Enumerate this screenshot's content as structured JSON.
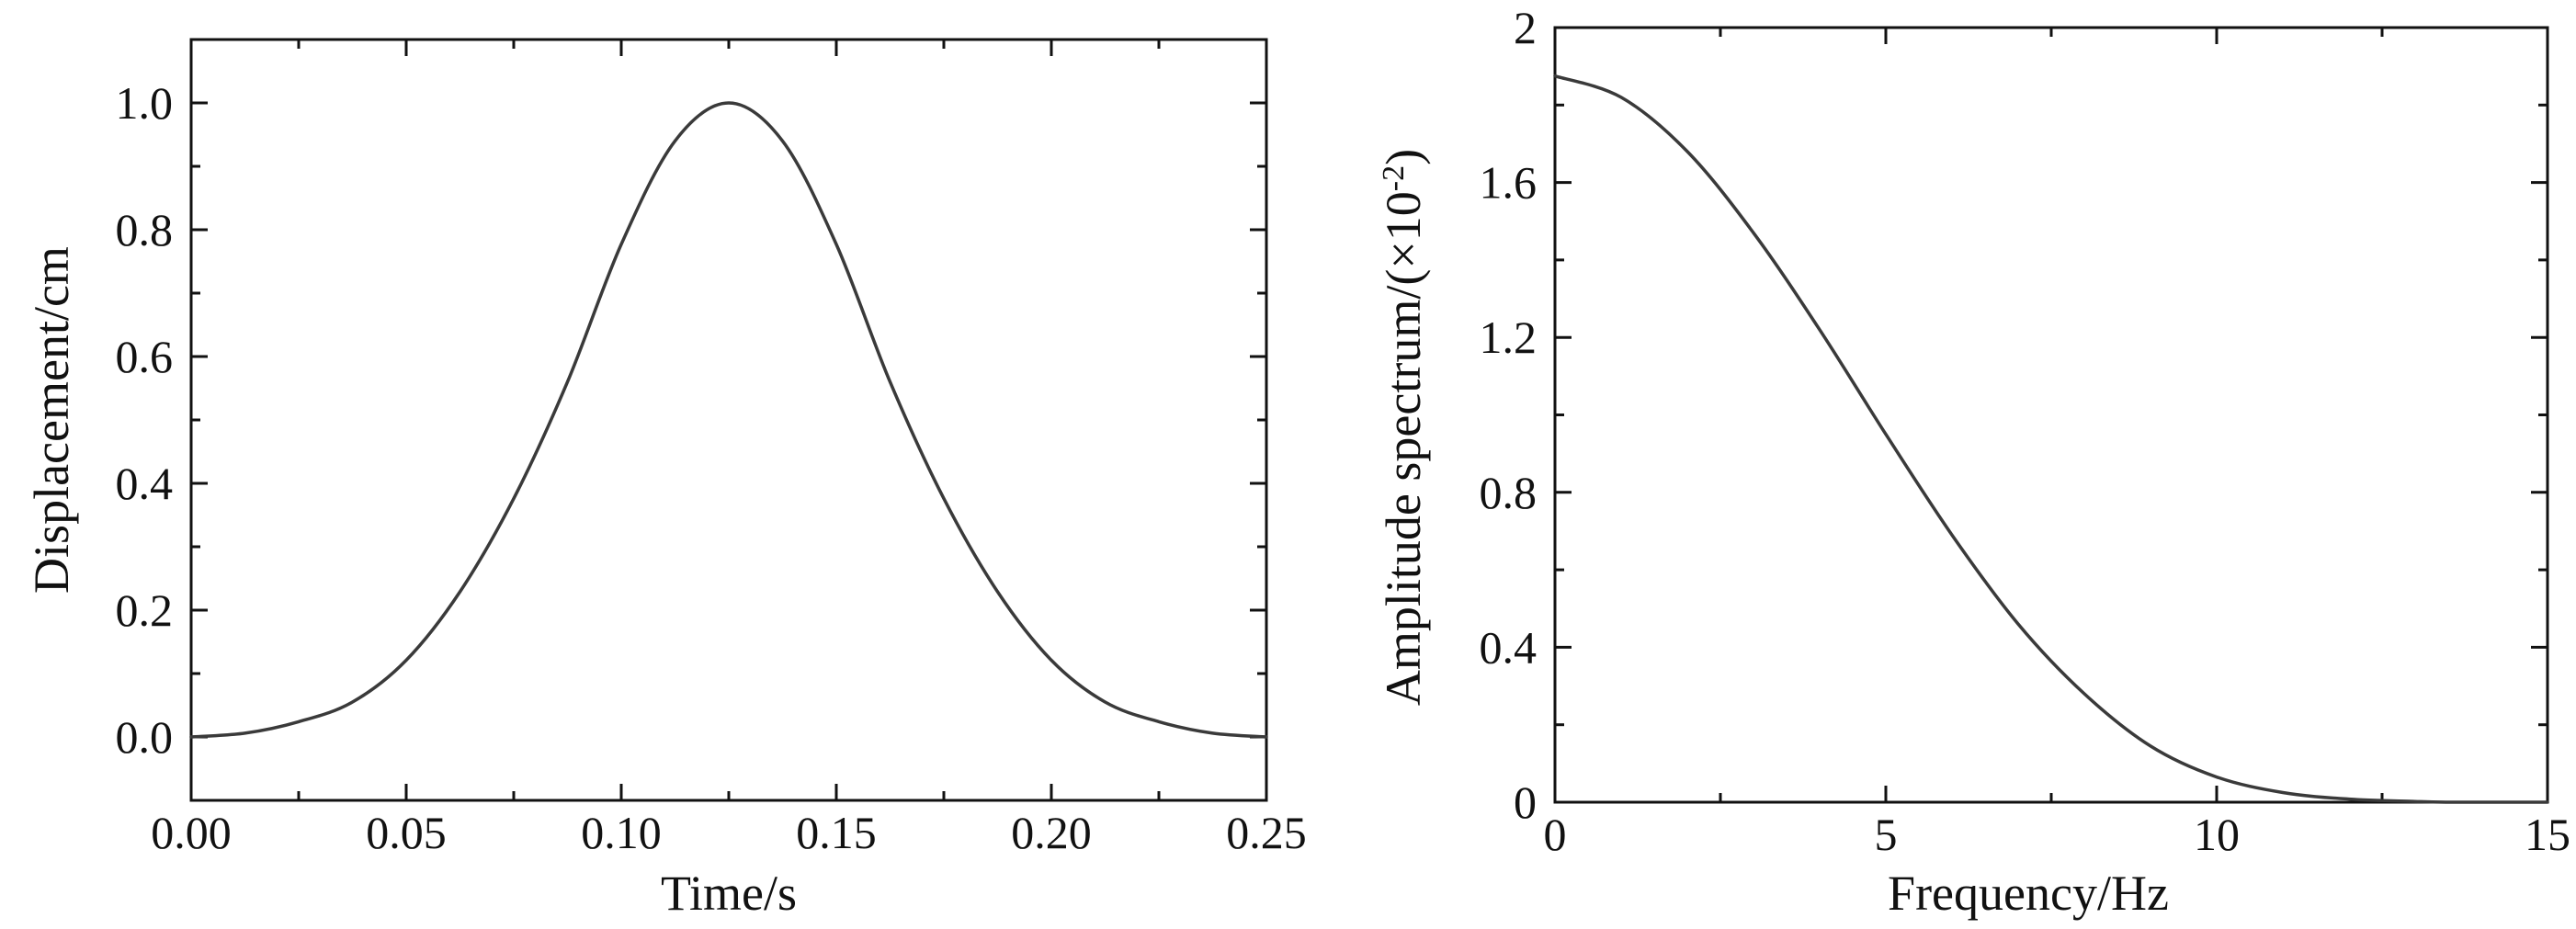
{
  "chart_data": [
    {
      "type": "line",
      "xlabel": "Time/s",
      "ylabel": "Displacement/cm",
      "xlim": [
        0,
        0.25
      ],
      "ylim": [
        -0.1,
        1.1
      ],
      "xticks": [
        0.0,
        0.05,
        0.1,
        0.15,
        0.2,
        0.25
      ],
      "xtick_labels": [
        "0.00",
        "0.05",
        "0.10",
        "0.15",
        "0.20",
        "0.25"
      ],
      "yticks": [
        0.0,
        0.2,
        0.4,
        0.6,
        0.8,
        1.0
      ],
      "ytick_labels": [
        "0.0",
        "0.2",
        "0.4",
        "0.6",
        "0.8",
        "1.0"
      ],
      "grid": false,
      "series": [
        {
          "color": "#3a3a3a",
          "x": [
            0.0,
            0.0125,
            0.025,
            0.0375,
            0.05,
            0.0625,
            0.075,
            0.0875,
            0.1,
            0.1125,
            0.125,
            0.1375,
            0.15,
            0.1625,
            0.175,
            0.1875,
            0.2,
            0.2125,
            0.225,
            0.2375,
            0.25
          ],
          "y": [
            0.0,
            0.006,
            0.024,
            0.055,
            0.121,
            0.229,
            0.376,
            0.56,
            0.777,
            0.94,
            1.0,
            0.94,
            0.777,
            0.56,
            0.376,
            0.229,
            0.121,
            0.055,
            0.024,
            0.006,
            0.0
          ]
        }
      ]
    },
    {
      "type": "line",
      "xlabel": "Frequency/Hz",
      "ylabel_main": "Amplitude spectrum/(×10",
      "ylabel_exp": "-2",
      "ylabel_close": ")",
      "xlim": [
        0,
        15
      ],
      "ylim": [
        0,
        2
      ],
      "xticks": [
        0,
        5,
        10,
        15
      ],
      "xtick_labels": [
        "0",
        "5",
        "10",
        "15"
      ],
      "yticks": [
        0,
        0.4,
        0.8,
        1.2,
        1.6,
        2.0
      ],
      "ytick_labels": [
        "0",
        "0.4",
        "0.8",
        "1.2",
        "1.6",
        "2"
      ],
      "grid": false,
      "series": [
        {
          "color": "#3a3a3a",
          "x": [
            0,
            1,
            2,
            3,
            4,
            5,
            6,
            7,
            8,
            9,
            10,
            11,
            12,
            13,
            13.5,
            14,
            15
          ],
          "y": [
            1.875,
            1.82,
            1.68,
            1.47,
            1.22,
            0.95,
            0.69,
            0.46,
            0.28,
            0.145,
            0.065,
            0.025,
            0.008,
            0.002,
            0.0,
            0.0,
            0.0
          ]
        }
      ]
    }
  ]
}
